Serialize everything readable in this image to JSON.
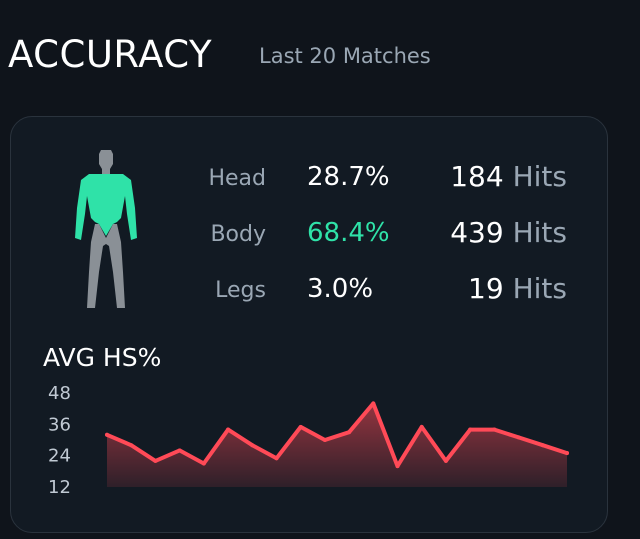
{
  "header": {
    "title": "ACCURACY",
    "subtitle": "Last 20 Matches"
  },
  "colors": {
    "accent_green": "#2fe2a8",
    "line_red": "#ff4a57",
    "figure_torso": "#2fe2a8",
    "figure_gray": "#8a9096"
  },
  "body_icon": "human-body-silhouette-icon",
  "accuracy": {
    "rows": [
      {
        "part": "Head",
        "percent": "28.7%",
        "hits": "184",
        "hits_unit": "Hits"
      },
      {
        "part": "Body",
        "percent": "68.4%",
        "hits": "439",
        "hits_unit": "Hits"
      },
      {
        "part": "Legs",
        "percent": "3.0%",
        "hits": "19",
        "hits_unit": "Hits"
      }
    ]
  },
  "chart_data": {
    "type": "area",
    "title": "AVG HS%",
    "ytick_labels": [
      "48",
      "36",
      "24",
      "12"
    ],
    "yticks": [
      48,
      36,
      24,
      12
    ],
    "ylim": [
      12,
      48
    ],
    "grid": false,
    "x": [
      1,
      2,
      3,
      4,
      5,
      6,
      7,
      8,
      9,
      10,
      11,
      12,
      13,
      14,
      15,
      16,
      17,
      18,
      19,
      20
    ],
    "series": [
      {
        "values": [
          32,
          28,
          22,
          26,
          21,
          34,
          28,
          23,
          35,
          30,
          33,
          44,
          20,
          35,
          22,
          34,
          34,
          31,
          28,
          25
        ]
      }
    ]
  }
}
